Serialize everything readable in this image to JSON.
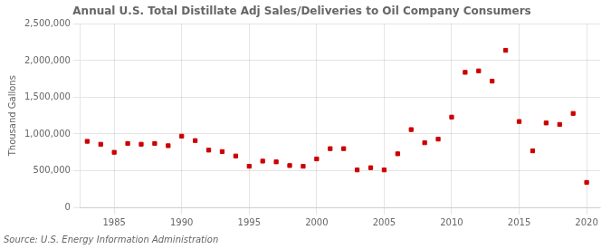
{
  "chart_data": {
    "type": "scatter",
    "title": "Annual U.S. Total Distillate Adj Sales/Deliveries to Oil Company Consumers",
    "ylabel": "Thousand Gallons",
    "source": "Source: U.S. Energy Information Administration",
    "color": "#cc0000",
    "marker": "square",
    "grid": true,
    "xlim": [
      1982.5,
      2021
    ],
    "ylim": [
      0,
      2500000
    ],
    "xticks": [
      1985,
      1990,
      1995,
      2000,
      2005,
      2010,
      2015,
      2020
    ],
    "yticks": [
      0,
      {
        "value": 500000,
        "label": "500,000"
      },
      {
        "value": 1000000,
        "label": "1,000,000"
      },
      {
        "value": 1500000,
        "label": "1,500,000"
      },
      {
        "value": 2000000,
        "label": "2,000,000"
      },
      {
        "value": 2500000,
        "label": "2,500,000"
      }
    ],
    "x": [
      1983,
      1984,
      1985,
      1986,
      1987,
      1988,
      1989,
      1990,
      1991,
      1992,
      1993,
      1994,
      1995,
      1996,
      1997,
      1998,
      1999,
      2000,
      2001,
      2002,
      2003,
      2004,
      2005,
      2006,
      2007,
      2008,
      2009,
      2010,
      2011,
      2012,
      2013,
      2014,
      2015,
      2016,
      2017,
      2018,
      2019,
      2020
    ],
    "values": [
      900000,
      860000,
      750000,
      870000,
      860000,
      870000,
      840000,
      970000,
      910000,
      780000,
      760000,
      700000,
      560000,
      630000,
      620000,
      570000,
      560000,
      660000,
      800000,
      800000,
      510000,
      540000,
      510000,
      730000,
      1060000,
      880000,
      930000,
      1230000,
      1840000,
      1860000,
      1720000,
      2140000,
      1170000,
      770000,
      1150000,
      1130000,
      1280000,
      340000
    ]
  }
}
